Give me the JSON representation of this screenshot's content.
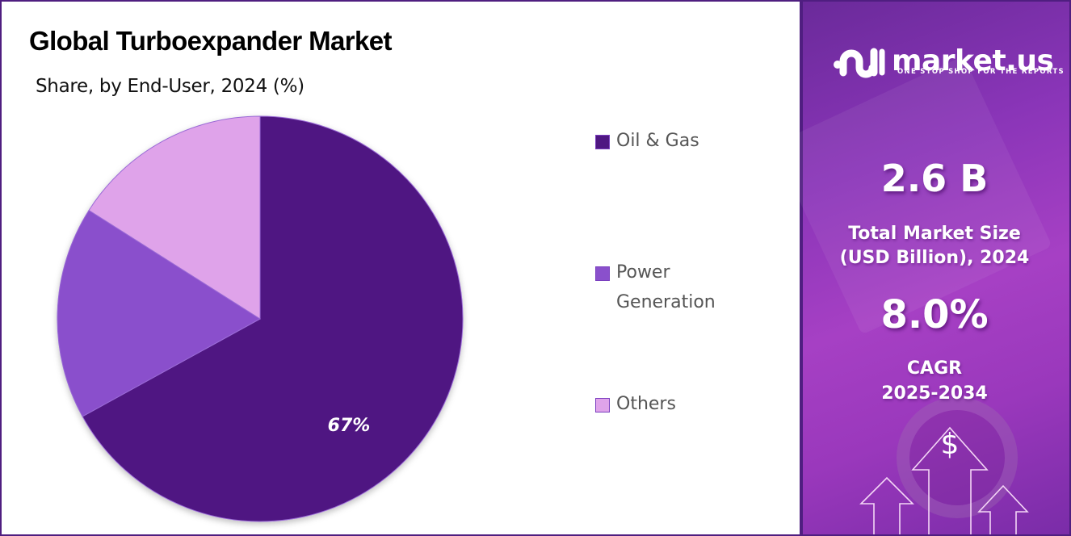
{
  "header": {
    "title": "Global Turboexpander Market",
    "subtitle": "Share, by End-User, 2024 (%)"
  },
  "legend": [
    {
      "label": "Oil & Gas",
      "color": "#4f1782"
    },
    {
      "label": "Power Generation",
      "color": "#8a50cc"
    },
    {
      "label": "Others",
      "color": "#dfa3ea"
    }
  ],
  "pie_labels": {
    "oil_gas": "67%"
  },
  "sidebar": {
    "brand": "market.us",
    "tagline": "ONE STOP SHOP FOR THE REPORTS",
    "market_size_value": "2.6  B",
    "market_size_label_line1": "Total Market Size",
    "market_size_label_line2": "(USD Billion), 2024",
    "cagr_value": "8.0%",
    "cagr_label_line1": "CAGR",
    "cagr_label_line2": "2025-2034",
    "dollar_symbol": "$"
  },
  "colors": {
    "border": "#4f1e80",
    "oil_gas": "#4f1782",
    "power_generation": "#8a50cc",
    "others": "#dfa3ea"
  },
  "chart_data": {
    "type": "pie",
    "title": "Global Turboexpander Market",
    "subtitle": "Share, by End-User, 2024 (%)",
    "categories": [
      "Oil & Gas",
      "Power Generation",
      "Others"
    ],
    "values": [
      67,
      17,
      16
    ],
    "data_labels": [
      "67%",
      "",
      ""
    ],
    "colors": [
      "#4f1782",
      "#8a50cc",
      "#dfa3ea"
    ],
    "start_angle": "12 o'clock, clockwise",
    "legend_position": "right",
    "summary_stats": {
      "market_size_2024_usd_billion": 2.6,
      "cagr_2025_2034_percent": 8.0
    }
  }
}
